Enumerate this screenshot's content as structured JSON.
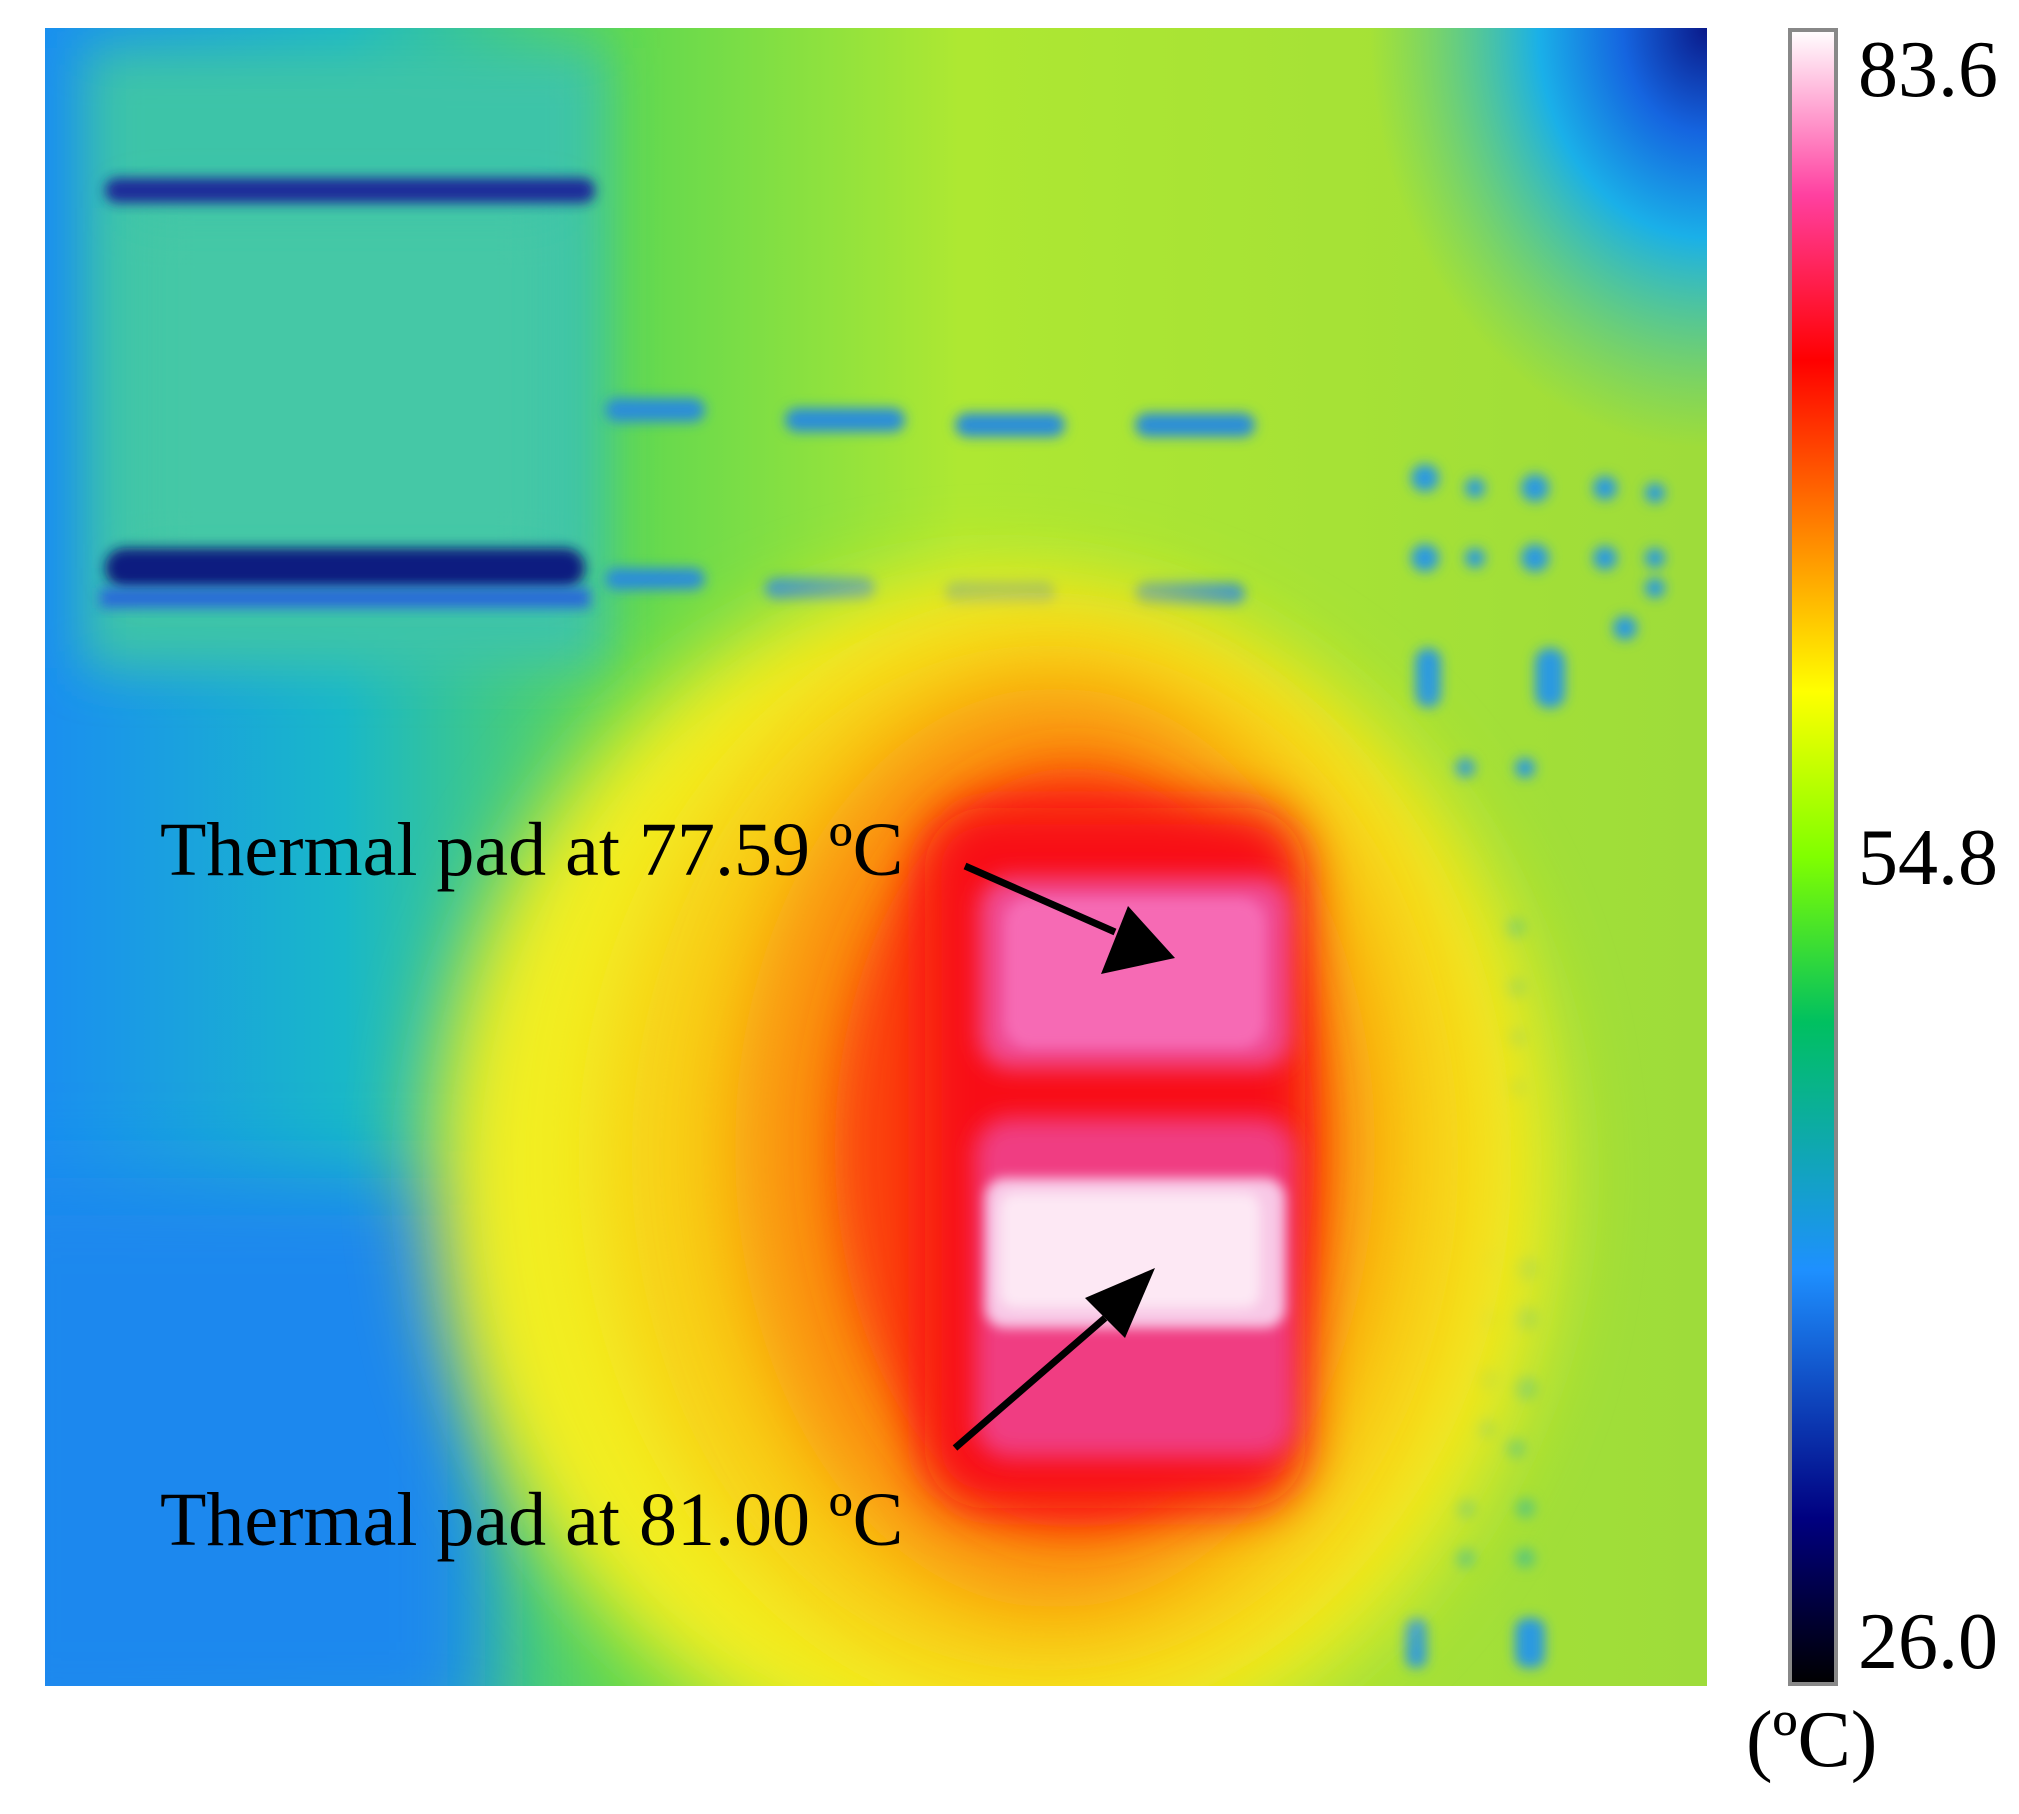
{
  "annotations": [
    {
      "text": "Thermal pad at 77.59 ºC",
      "temperature": 77.59,
      "unit": "ºC"
    },
    {
      "text": "Thermal pad at 81.00 ºC",
      "temperature": 81.0,
      "unit": "ºC"
    }
  ],
  "colorbar": {
    "max_label": "83.6",
    "mid_label": "54.8",
    "min_label": "26.0",
    "unit_label": "(ºC)",
    "range": [
      26.0,
      83.6
    ],
    "palette": [
      "#000000",
      "#000080",
      "#1e90ff",
      "#00c000",
      "#80ff00",
      "#ffff00",
      "#ff8000",
      "#ff0000",
      "#ff40a0",
      "#ffffff"
    ]
  },
  "colors": {
    "cold": "#1e90ff",
    "background": "#9ad93a",
    "hot": "#ff0030",
    "hottest": "#ffe0f4"
  }
}
